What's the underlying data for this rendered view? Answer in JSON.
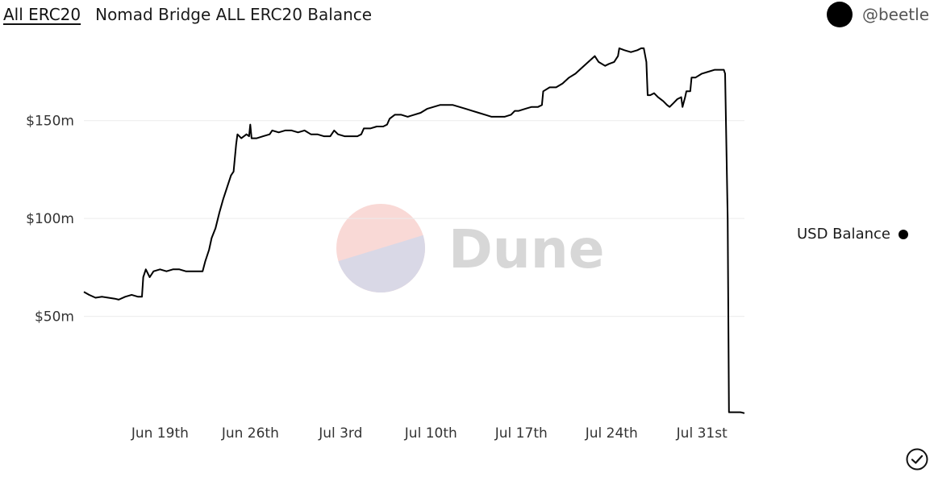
{
  "header": {
    "tab_label": "All ERC20",
    "title": "Nomad Bridge ALL ERC20 Balance"
  },
  "author": {
    "handle": "@beetle",
    "avatar_color": "#000000"
  },
  "watermark": {
    "text": "Dune",
    "colors": {
      "top": "#f9d9d6",
      "bottom": "#d9d8e6",
      "text": "#d7d7d7"
    }
  },
  "legend": {
    "label": "USD Balance"
  },
  "icons": {
    "check": "check-circle-icon"
  },
  "chart_data": {
    "type": "line",
    "title": "Nomad Bridge ALL ERC20 Balance",
    "xlabel": "",
    "ylabel": "",
    "x_tick_labels": [
      "Jun 19th",
      "Jun 26th",
      "Jul 3rd",
      "Jul 10th",
      "Jul 17th",
      "Jul 24th",
      "Jul 31st"
    ],
    "x_tick_days": [
      19,
      26,
      33,
      40,
      47,
      54,
      61
    ],
    "y_tick_labels": [
      "$50m",
      "$100m",
      "$150m"
    ],
    "y_tick_values": [
      50,
      100,
      150
    ],
    "ylim": [
      0,
      196
    ],
    "xlim": [
      13.1,
      64.3
    ],
    "grid": true,
    "series": [
      {
        "name": "USD Balance",
        "color": "#000000",
        "points": [
          [
            13.1,
            62.5
          ],
          [
            13.5,
            61
          ],
          [
            14.0,
            59.5
          ],
          [
            14.5,
            60
          ],
          [
            15.0,
            59.5
          ],
          [
            15.5,
            59
          ],
          [
            15.8,
            58.5
          ],
          [
            16.3,
            60
          ],
          [
            16.8,
            61
          ],
          [
            17.3,
            60
          ],
          [
            17.6,
            60
          ],
          [
            17.7,
            70
          ],
          [
            17.9,
            74
          ],
          [
            18.2,
            70
          ],
          [
            18.5,
            73
          ],
          [
            19.0,
            74
          ],
          [
            19.5,
            73
          ],
          [
            20.0,
            74
          ],
          [
            20.5,
            74
          ],
          [
            21.0,
            73
          ],
          [
            21.5,
            73
          ],
          [
            22.0,
            73
          ],
          [
            22.3,
            73
          ],
          [
            22.5,
            78
          ],
          [
            22.8,
            84
          ],
          [
            23.0,
            90
          ],
          [
            23.3,
            95
          ],
          [
            23.6,
            103
          ],
          [
            23.9,
            110
          ],
          [
            24.2,
            116
          ],
          [
            24.5,
            122
          ],
          [
            24.7,
            124
          ],
          [
            24.9,
            138
          ],
          [
            25.0,
            143
          ],
          [
            25.3,
            141
          ],
          [
            25.7,
            143
          ],
          [
            25.9,
            142
          ],
          [
            26.0,
            148
          ],
          [
            26.1,
            141
          ],
          [
            26.5,
            141
          ],
          [
            27.0,
            142
          ],
          [
            27.5,
            143
          ],
          [
            27.7,
            145
          ],
          [
            28.2,
            144
          ],
          [
            28.7,
            145
          ],
          [
            29.2,
            145
          ],
          [
            29.7,
            144
          ],
          [
            30.2,
            145
          ],
          [
            30.7,
            143
          ],
          [
            31.2,
            143
          ],
          [
            31.7,
            142
          ],
          [
            32.2,
            142
          ],
          [
            32.5,
            145
          ],
          [
            32.8,
            143
          ],
          [
            33.3,
            142
          ],
          [
            33.8,
            142
          ],
          [
            34.3,
            142
          ],
          [
            34.6,
            143
          ],
          [
            34.8,
            146
          ],
          [
            35.3,
            146
          ],
          [
            35.8,
            147
          ],
          [
            36.3,
            147
          ],
          [
            36.6,
            148
          ],
          [
            36.8,
            151
          ],
          [
            37.2,
            153
          ],
          [
            37.7,
            153
          ],
          [
            38.2,
            152
          ],
          [
            38.7,
            153
          ],
          [
            39.2,
            154
          ],
          [
            39.7,
            156
          ],
          [
            40.2,
            157
          ],
          [
            40.7,
            158
          ],
          [
            41.2,
            158
          ],
          [
            41.7,
            158
          ],
          [
            42.2,
            157
          ],
          [
            42.7,
            156
          ],
          [
            43.2,
            155
          ],
          [
            43.7,
            154
          ],
          [
            44.2,
            153
          ],
          [
            44.7,
            152
          ],
          [
            45.2,
            152
          ],
          [
            45.7,
            152
          ],
          [
            46.2,
            153
          ],
          [
            46.5,
            155
          ],
          [
            46.8,
            155
          ],
          [
            47.3,
            156
          ],
          [
            47.8,
            157
          ],
          [
            48.3,
            157
          ],
          [
            48.6,
            158
          ],
          [
            48.7,
            165
          ],
          [
            49.2,
            167
          ],
          [
            49.7,
            167
          ],
          [
            50.2,
            169
          ],
          [
            50.7,
            172
          ],
          [
            51.2,
            174
          ],
          [
            51.7,
            177
          ],
          [
            52.2,
            180
          ],
          [
            52.7,
            183
          ],
          [
            53.0,
            180
          ],
          [
            53.5,
            178
          ],
          [
            53.8,
            179
          ],
          [
            54.2,
            180
          ],
          [
            54.5,
            183
          ],
          [
            54.6,
            187
          ],
          [
            55.0,
            186
          ],
          [
            55.5,
            185
          ],
          [
            56.0,
            186
          ],
          [
            56.3,
            187
          ],
          [
            56.5,
            187
          ],
          [
            56.7,
            180
          ],
          [
            56.8,
            163
          ],
          [
            57.0,
            163
          ],
          [
            57.3,
            164
          ],
          [
            57.6,
            162
          ],
          [
            58.0,
            160
          ],
          [
            58.3,
            158
          ],
          [
            58.5,
            157
          ],
          [
            58.8,
            159
          ],
          [
            59.1,
            161
          ],
          [
            59.4,
            162
          ],
          [
            59.5,
            157
          ],
          [
            59.7,
            162
          ],
          [
            59.8,
            165
          ],
          [
            60.1,
            165
          ],
          [
            60.2,
            172
          ],
          [
            60.5,
            172
          ],
          [
            61.0,
            174
          ],
          [
            61.5,
            175
          ],
          [
            62.0,
            176
          ],
          [
            62.5,
            176
          ],
          [
            62.7,
            176
          ],
          [
            62.8,
            174
          ],
          [
            63.0,
            100
          ],
          [
            63.1,
            1
          ],
          [
            63.5,
            1
          ],
          [
            64.0,
            1
          ],
          [
            64.3,
            0.5
          ]
        ]
      }
    ]
  }
}
